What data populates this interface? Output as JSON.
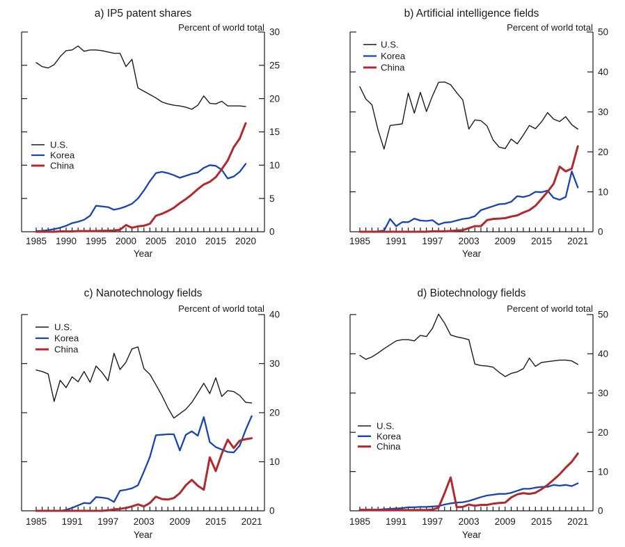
{
  "figure": {
    "background": "#ffffff",
    "text_color": "#1a1a1a",
    "axis_color": "#1a1a1a"
  },
  "chart_data": [
    {
      "id": "a",
      "type": "line",
      "title": "a) IP5 patent shares",
      "unit_label": "Percent of world total",
      "xlabel": "Year",
      "ylim": [
        0,
        30
      ],
      "yticks": [
        0,
        5,
        10,
        15,
        20,
        25,
        30
      ],
      "xticks": [
        1985,
        1990,
        1995,
        2000,
        2005,
        2010,
        2015,
        2020
      ],
      "grid": false,
      "legend_position": "middle-left",
      "years": [
        1985,
        1986,
        1987,
        1988,
        1989,
        1990,
        1991,
        1992,
        1993,
        1994,
        1995,
        1996,
        1997,
        1998,
        1999,
        2000,
        2001,
        2002,
        2003,
        2004,
        2005,
        2006,
        2007,
        2008,
        2009,
        2010,
        2011,
        2012,
        2013,
        2014,
        2015,
        2016,
        2017,
        2018,
        2019,
        2020
      ],
      "series": [
        {
          "name": "U.S.",
          "color": "#1a1a1a",
          "values": [
            25.4,
            24.8,
            24.6,
            25.1,
            26.3,
            27.2,
            27.3,
            27.9,
            27.1,
            27.3,
            27.3,
            27.2,
            27.0,
            26.8,
            26.8,
            24.8,
            25.9,
            21.6,
            21.1,
            20.6,
            20.1,
            19.5,
            19.2,
            19.0,
            18.9,
            18.7,
            18.4,
            19.0,
            20.4,
            19.3,
            19.2,
            19.6,
            18.9,
            18.9,
            18.9,
            18.8
          ]
        },
        {
          "name": "Korea",
          "color": "#1843b5",
          "values": [
            0.1,
            0.15,
            0.25,
            0.4,
            0.6,
            0.9,
            1.3,
            1.5,
            1.8,
            2.4,
            3.9,
            3.8,
            3.7,
            3.3,
            3.5,
            3.8,
            4.2,
            5.0,
            6.2,
            7.6,
            8.8,
            9.0,
            8.8,
            8.5,
            8.1,
            8.4,
            8.7,
            8.9,
            9.6,
            10.0,
            9.9,
            9.3,
            8.0,
            8.3,
            9.0,
            10.2
          ]
        },
        {
          "name": "China",
          "color": "#b2282d",
          "values": [
            0,
            0,
            0,
            0,
            0.05,
            0.05,
            0.05,
            0.1,
            0.1,
            0.1,
            0.1,
            0.15,
            0.15,
            0.2,
            0.3,
            1.0,
            0.6,
            0.8,
            0.9,
            1.2,
            2.4,
            2.7,
            3.1,
            3.6,
            4.3,
            4.9,
            5.6,
            6.4,
            7.1,
            7.5,
            8.2,
            9.4,
            10.7,
            12.7,
            14.0,
            16.3
          ]
        }
      ]
    },
    {
      "id": "b",
      "type": "line",
      "title": "b) Artificial intelligence fields",
      "unit_label": "Percent of world total",
      "xlabel": "Year",
      "ylim": [
        0,
        50
      ],
      "yticks": [
        0,
        10,
        20,
        30,
        40,
        50
      ],
      "xticks": [
        1985,
        1991,
        1997,
        2003,
        2009,
        2015,
        2021
      ],
      "grid": false,
      "legend_position": "top-left",
      "years": [
        1985,
        1986,
        1987,
        1988,
        1989,
        1990,
        1991,
        1992,
        1993,
        1994,
        1995,
        1996,
        1997,
        1998,
        1999,
        2000,
        2001,
        2002,
        2003,
        2004,
        2005,
        2006,
        2007,
        2008,
        2009,
        2010,
        2011,
        2012,
        2013,
        2014,
        2015,
        2016,
        2017,
        2018,
        2019,
        2020,
        2021
      ],
      "series": [
        {
          "name": "U.S.",
          "color": "#1a1a1a",
          "values": [
            36.3,
            33.2,
            31.8,
            25.5,
            20.7,
            26.6,
            26.8,
            27.0,
            34.7,
            29.7,
            34.9,
            30.1,
            34.0,
            37.4,
            37.5,
            36.8,
            34.8,
            33.0,
            25.7,
            28.0,
            27.8,
            26.5,
            23.0,
            21.2,
            20.8,
            23.2,
            22.0,
            24.2,
            26.6,
            25.8,
            27.5,
            29.8,
            28.2,
            27.6,
            28.8,
            26.8,
            25.7
          ]
        },
        {
          "name": "Korea",
          "color": "#1843b5",
          "values": [
            0,
            0,
            0,
            0.1,
            0.3,
            3.2,
            1.4,
            2.4,
            2.4,
            3.3,
            2.8,
            2.7,
            2.9,
            1.8,
            2.3,
            2.4,
            2.8,
            3.2,
            3.4,
            3.9,
            5.4,
            5.9,
            6.4,
            6.9,
            7.0,
            7.5,
            8.9,
            8.7,
            9.1,
            10.0,
            9.9,
            10.3,
            8.5,
            8.0,
            8.7,
            15.1,
            11.1
          ]
        },
        {
          "name": "China",
          "color": "#b2282d",
          "values": [
            0,
            0,
            0,
            0,
            0,
            0,
            0,
            0,
            0,
            0,
            0,
            0,
            0.1,
            0.1,
            0.1,
            0.2,
            0.3,
            0.4,
            0.9,
            1.4,
            1.4,
            2.9,
            3.2,
            3.3,
            3.4,
            3.8,
            4.1,
            4.8,
            5.4,
            6.5,
            8.2,
            10.0,
            12.0,
            16.3,
            15.1,
            15.8,
            21.4
          ]
        }
      ]
    },
    {
      "id": "c",
      "type": "line",
      "title": "c) Nanotechnology fields",
      "unit_label": "Percent of world total",
      "xlabel": "Year",
      "ylim": [
        0,
        40
      ],
      "yticks": [
        0,
        10,
        20,
        30,
        40
      ],
      "xticks": [
        1985,
        1991,
        1997,
        2003,
        2009,
        2015,
        2021
      ],
      "grid": false,
      "legend_position": "top-left",
      "years": [
        1985,
        1986,
        1987,
        1988,
        1989,
        1990,
        1991,
        1992,
        1993,
        1994,
        1995,
        1996,
        1997,
        1998,
        1999,
        2000,
        2001,
        2002,
        2003,
        2004,
        2005,
        2006,
        2007,
        2008,
        2009,
        2010,
        2011,
        2012,
        2013,
        2014,
        2015,
        2016,
        2017,
        2018,
        2019,
        2020,
        2021
      ],
      "series": [
        {
          "name": "U.S.",
          "color": "#1a1a1a",
          "values": [
            28.7,
            28.4,
            27.9,
            22.3,
            26.6,
            25.1,
            27.3,
            26.3,
            28.4,
            26.2,
            29.5,
            28.2,
            26.5,
            32.1,
            28.8,
            30.3,
            33.0,
            33.4,
            29.0,
            27.8,
            25.7,
            23.5,
            21.0,
            18.9,
            19.8,
            20.7,
            22.1,
            24.0,
            26.0,
            23.9,
            27.1,
            23.3,
            24.5,
            24.3,
            23.5,
            22.1,
            22.0
          ]
        },
        {
          "name": "Korea",
          "color": "#1843b5",
          "values": [
            0,
            0,
            0,
            0,
            0,
            0.2,
            0.6,
            1.1,
            1.6,
            1.5,
            2.8,
            2.7,
            2.5,
            1.8,
            4.1,
            4.3,
            4.6,
            5.2,
            8.0,
            11.0,
            15.4,
            15.5,
            15.6,
            15.6,
            12.3,
            15.5,
            16.2,
            15.3,
            19.1,
            14.0,
            13.0,
            12.5,
            12.0,
            11.9,
            13.3,
            16.5,
            19.3
          ]
        },
        {
          "name": "China",
          "color": "#b2282d",
          "values": [
            0,
            0,
            0,
            0,
            0,
            0,
            0,
            0,
            0,
            0,
            0,
            0,
            0.1,
            0.3,
            0.4,
            0.6,
            0.9,
            1.3,
            0.9,
            1.6,
            2.9,
            2.4,
            2.3,
            2.6,
            3.6,
            5.2,
            6.3,
            5.1,
            4.3,
            10.9,
            8.1,
            11.6,
            14.5,
            12.8,
            14.3,
            14.6,
            14.8
          ]
        }
      ]
    },
    {
      "id": "d",
      "type": "line",
      "title": "d) Biotechnology fields",
      "unit_label": "Percent of world total",
      "xlabel": "Year",
      "ylim": [
        0,
        50
      ],
      "yticks": [
        0,
        10,
        20,
        30,
        40,
        50
      ],
      "xticks": [
        1985,
        1991,
        1997,
        2003,
        2009,
        2015,
        2021
      ],
      "grid": false,
      "legend_position": "middle-left",
      "years": [
        1985,
        1986,
        1987,
        1988,
        1989,
        1990,
        1991,
        1992,
        1993,
        1994,
        1995,
        1996,
        1997,
        1998,
        1999,
        2000,
        2001,
        2002,
        2003,
        2004,
        2005,
        2006,
        2007,
        2008,
        2009,
        2010,
        2011,
        2012,
        2013,
        2014,
        2015,
        2016,
        2017,
        2018,
        2019,
        2020,
        2021
      ],
      "series": [
        {
          "name": "U.S.",
          "color": "#1a1a1a",
          "values": [
            39.6,
            38.6,
            39.2,
            40.2,
            41.3,
            42.3,
            43.3,
            43.6,
            43.6,
            43.3,
            44.7,
            44.4,
            46.5,
            50.1,
            47.8,
            44.8,
            44.3,
            44.0,
            43.6,
            37.4,
            37.0,
            36.9,
            36.6,
            35.3,
            34.2,
            35.0,
            35.4,
            36.2,
            38.9,
            36.8,
            37.8,
            38.0,
            38.2,
            38.4,
            38.4,
            38.2,
            37.3
          ]
        },
        {
          "name": "Korea",
          "color": "#1843b5",
          "values": [
            0.3,
            0.3,
            0.3,
            0.3,
            0.4,
            0.5,
            0.6,
            0.7,
            0.9,
            0.9,
            1.0,
            1.0,
            1.1,
            1.2,
            1.6,
            1.9,
            2.1,
            2.2,
            2.5,
            3.0,
            3.5,
            3.9,
            4.1,
            4.3,
            4.3,
            4.6,
            5.1,
            5.6,
            5.6,
            5.9,
            6.1,
            6.1,
            6.6,
            6.4,
            6.6,
            6.3,
            7.0
          ]
        },
        {
          "name": "China",
          "color": "#b2282d",
          "values": [
            0.2,
            0.2,
            0.2,
            0.2,
            0.2,
            0.2,
            0.2,
            0.2,
            0.2,
            0.2,
            0.2,
            0.2,
            0.3,
            0.8,
            4.5,
            8.5,
            0.9,
            1.0,
            1.6,
            1.3,
            1.5,
            1.5,
            1.8,
            2.0,
            2.1,
            3.4,
            4.2,
            4.5,
            4.3,
            4.6,
            5.5,
            6.6,
            7.9,
            9.3,
            11.0,
            12.5,
            14.6
          ]
        }
      ]
    }
  ]
}
